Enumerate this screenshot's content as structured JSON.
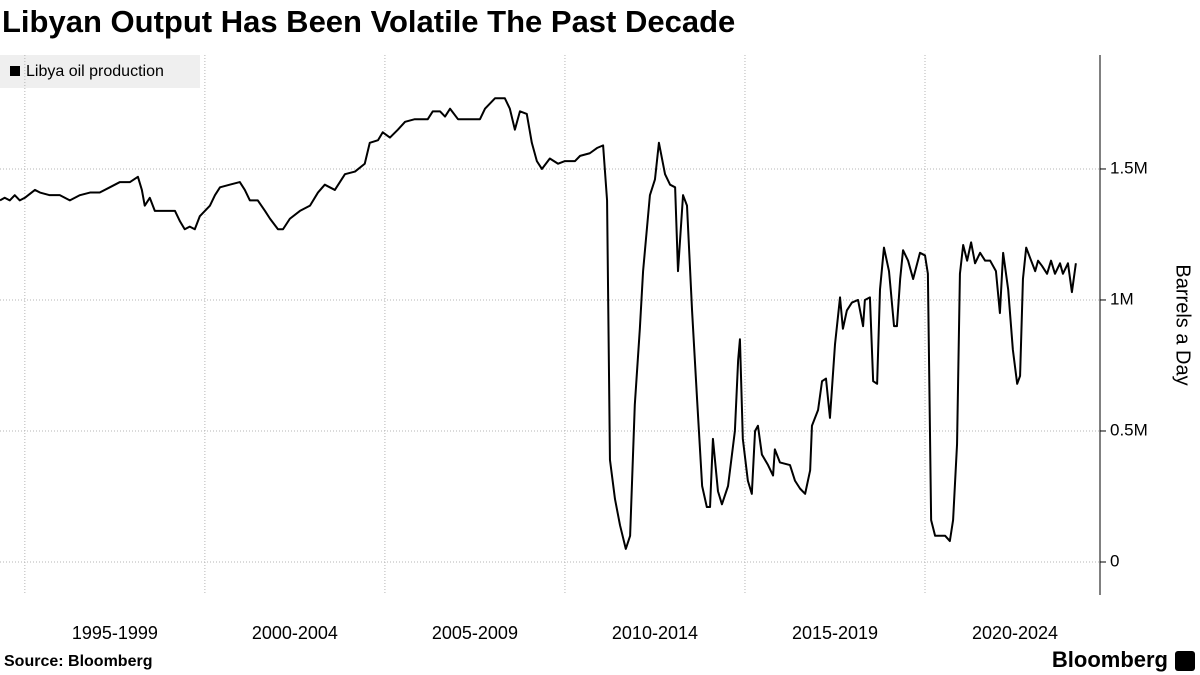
{
  "chart_data": {
    "type": "line",
    "title": "Libyan Output Has Been Volatile The Past Decade",
    "y_label": "Barrels a Day",
    "source": "Source: Bloomberg",
    "brand": "Bloomberg",
    "legend": "top-left",
    "grid": true,
    "xlim": [
      1994.31,
      2024.86
    ],
    "ylim": [
      -126000,
      1935000
    ],
    "yticks": [
      0,
      {
        "value": 500000,
        "label": "0.5M"
      },
      {
        "value": 1000000,
        "label": "1M"
      },
      {
        "value": 1500000,
        "label": "1.5M"
      }
    ],
    "xticks": [
      {
        "value": 1997.5,
        "label": "1995-1999"
      },
      {
        "value": 2002.5,
        "label": "2000-2004"
      },
      {
        "value": 2007.5,
        "label": "2005-2009"
      },
      {
        "value": 2012.5,
        "label": "2010-2014"
      },
      {
        "value": 2017.5,
        "label": "2015-2019"
      },
      {
        "value": 2022.5,
        "label": "2020-2024"
      }
    ],
    "xgrid": [
      1995,
      2000,
      2005,
      2010,
      2015,
      2020
    ],
    "x": [
      1994.31,
      1994.44,
      1994.58,
      1994.72,
      1994.86,
      1995.0,
      1995.28,
      1995.42,
      1995.69,
      1995.97,
      1996.25,
      1996.53,
      1996.81,
      1997.08,
      1997.36,
      1997.64,
      1997.92,
      1998.14,
      1998.25,
      1998.33,
      1998.47,
      1998.61,
      1998.89,
      1999.17,
      1999.31,
      1999.44,
      1999.58,
      1999.72,
      1999.86,
      2000.14,
      2000.28,
      2000.42,
      2000.69,
      2000.97,
      2001.11,
      2001.25,
      2001.47,
      2001.67,
      2001.81,
      2002.03,
      2002.17,
      2002.36,
      2002.64,
      2002.92,
      2003.14,
      2003.33,
      2003.61,
      2003.89,
      2004.17,
      2004.44,
      2004.58,
      2004.81,
      2004.94,
      2005.14,
      2005.36,
      2005.56,
      2005.83,
      2006.19,
      2006.33,
      2006.53,
      2006.67,
      2006.81,
      2007.03,
      2007.22,
      2007.64,
      2007.78,
      2008.06,
      2008.33,
      2008.47,
      2008.61,
      2008.75,
      2008.94,
      2009.08,
      2009.22,
      2009.36,
      2009.58,
      2009.81,
      2010.0,
      2010.28,
      2010.42,
      2010.69,
      2010.89,
      2011.06,
      2011.17,
      2011.25,
      2011.39,
      2011.53,
      2011.69,
      2011.81,
      2011.94,
      2012.08,
      2012.17,
      2012.36,
      2012.5,
      2012.61,
      2012.78,
      2012.92,
      2013.06,
      2013.14,
      2013.28,
      2013.39,
      2013.53,
      2013.67,
      2013.81,
      2013.94,
      2014.03,
      2014.11,
      2014.25,
      2014.36,
      2014.53,
      2014.72,
      2014.81,
      2014.86,
      2014.94,
      2015.08,
      2015.19,
      2015.28,
      2015.36,
      2015.47,
      2015.64,
      2015.78,
      2015.83,
      2015.97,
      2016.25,
      2016.39,
      2016.53,
      2016.67,
      2016.81,
      2016.86,
      2017.03,
      2017.14,
      2017.25,
      2017.36,
      2017.5,
      2017.64,
      2017.72,
      2017.83,
      2017.97,
      2018.14,
      2018.28,
      2018.33,
      2018.47,
      2018.56,
      2018.67,
      2018.75,
      2018.86,
      2019.0,
      2019.14,
      2019.22,
      2019.31,
      2019.39,
      2019.53,
      2019.67,
      2019.86,
      2020.0,
      2020.08,
      2020.17,
      2020.28,
      2020.42,
      2020.56,
      2020.69,
      2020.78,
      2020.89,
      2020.97,
      2021.06,
      2021.17,
      2021.28,
      2021.39,
      2021.53,
      2021.67,
      2021.81,
      2021.97,
      2022.08,
      2022.17,
      2022.31,
      2022.44,
      2022.56,
      2022.64,
      2022.72,
      2022.81,
      2022.92,
      2023.06,
      2023.14,
      2023.25,
      2023.39,
      2023.5,
      2023.61,
      2023.75,
      2023.83,
      2023.97,
      2024.08,
      2024.19
    ],
    "series": [
      {
        "name": "Libya oil production",
        "color": "#000000",
        "values": [
          1380000,
          1390000,
          1380000,
          1400000,
          1380000,
          1390000,
          1420000,
          1410000,
          1400000,
          1400000,
          1380000,
          1400000,
          1410000,
          1410000,
          1430000,
          1450000,
          1450000,
          1470000,
          1420000,
          1360000,
          1390000,
          1340000,
          1340000,
          1340000,
          1300000,
          1270000,
          1280000,
          1270000,
          1320000,
          1360000,
          1400000,
          1430000,
          1440000,
          1450000,
          1420000,
          1380000,
          1380000,
          1340000,
          1310000,
          1270000,
          1270000,
          1310000,
          1340000,
          1360000,
          1410000,
          1440000,
          1420000,
          1480000,
          1490000,
          1520000,
          1600000,
          1610000,
          1640000,
          1620000,
          1650000,
          1680000,
          1690000,
          1690000,
          1720000,
          1720000,
          1700000,
          1730000,
          1690000,
          1690000,
          1690000,
          1730000,
          1770000,
          1770000,
          1730000,
          1650000,
          1720000,
          1710000,
          1600000,
          1530000,
          1500000,
          1540000,
          1520000,
          1530000,
          1530000,
          1550000,
          1560000,
          1580000,
          1590000,
          1380000,
          390000,
          240000,
          140000,
          50000,
          100000,
          600000,
          890000,
          1110000,
          1400000,
          1460000,
          1600000,
          1480000,
          1440000,
          1430000,
          1110000,
          1400000,
          1360000,
          960000,
          620000,
          290000,
          210000,
          210000,
          470000,
          270000,
          220000,
          290000,
          500000,
          770000,
          850000,
          470000,
          310000,
          260000,
          500000,
          520000,
          410000,
          370000,
          330000,
          430000,
          380000,
          370000,
          310000,
          280000,
          260000,
          350000,
          520000,
          580000,
          690000,
          700000,
          550000,
          830000,
          1010000,
          890000,
          960000,
          990000,
          1000000,
          900000,
          1000000,
          1010000,
          690000,
          680000,
          1040000,
          1200000,
          1110000,
          900000,
          900000,
          1080000,
          1190000,
          1150000,
          1080000,
          1180000,
          1170000,
          1100000,
          160000,
          100000,
          100000,
          100000,
          80000,
          160000,
          450000,
          1100000,
          1210000,
          1150000,
          1220000,
          1140000,
          1180000,
          1150000,
          1150000,
          1110000,
          950000,
          1180000,
          1040000,
          810000,
          680000,
          710000,
          1080000,
          1200000,
          1160000,
          1110000,
          1150000,
          1130000,
          1100000,
          1150000,
          1100000,
          1140000,
          1100000,
          1140000,
          1030000,
          1140000
        ]
      }
    ]
  }
}
